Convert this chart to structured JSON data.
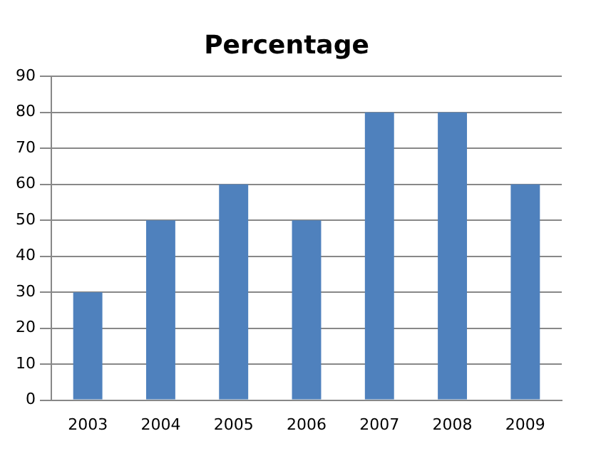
{
  "chart_data": {
    "type": "bar",
    "title": "Percentage",
    "categories": [
      "2003",
      "2004",
      "2005",
      "2006",
      "2007",
      "2008",
      "2009"
    ],
    "values": [
      30,
      50,
      60,
      50,
      80,
      80,
      60
    ],
    "color": "#4f81bd",
    "ylim": [
      0,
      90
    ],
    "yticks": [
      0,
      10,
      20,
      30,
      40,
      50,
      60,
      70,
      80,
      90
    ],
    "grid": "y",
    "legend": false
  }
}
